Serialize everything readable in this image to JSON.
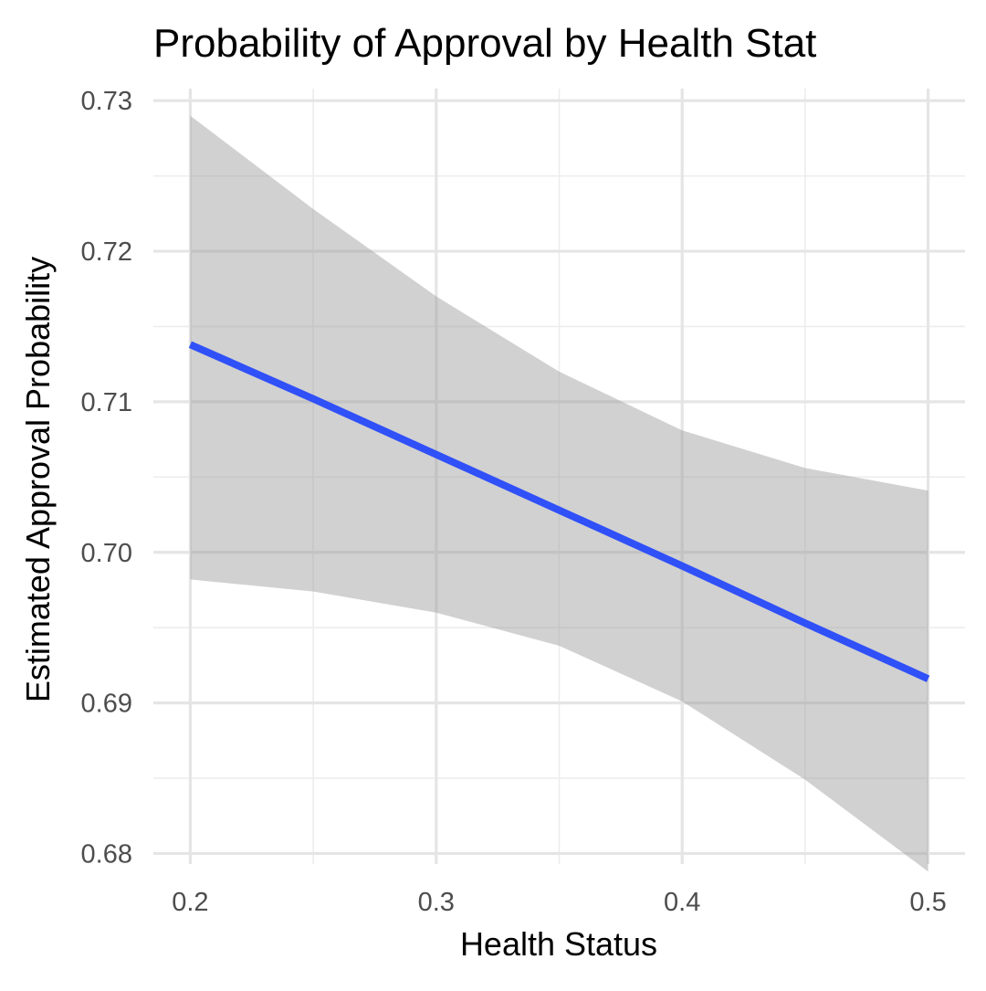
{
  "chart_data": {
    "type": "line",
    "title": "Probability of Approval by Health Stat",
    "xlabel": "Health Status",
    "ylabel": "Estimated Approval Probability",
    "xlim": [
      0.185,
      0.515
    ],
    "ylim": [
      0.6793,
      0.7308
    ],
    "x_ticks": [
      0.2,
      0.3,
      0.4,
      0.5
    ],
    "x_tick_labels": [
      "0.2",
      "0.3",
      "0.4",
      "0.5"
    ],
    "y_ticks": [
      0.68,
      0.69,
      0.7,
      0.71,
      0.72,
      0.73
    ],
    "y_tick_labels": [
      "0.68",
      "0.69",
      "0.70",
      "0.71",
      "0.72",
      "0.73"
    ],
    "grid": true,
    "series": [
      {
        "x": [
          0.2,
          0.25,
          0.3,
          0.35,
          0.4,
          0.45,
          0.5
        ],
        "y": [
          0.7138,
          0.7102,
          0.7065,
          0.7028,
          0.6991,
          0.6953,
          0.6916
        ],
        "ci_lower": [
          0.6982,
          0.6974,
          0.696,
          0.6938,
          0.6901,
          0.6849,
          0.6788
        ],
        "ci_upper": [
          0.729,
          0.7228,
          0.717,
          0.712,
          0.7081,
          0.7056,
          0.7041
        ],
        "color": "#3050f8",
        "ribbon_color": "#999999"
      }
    ]
  }
}
